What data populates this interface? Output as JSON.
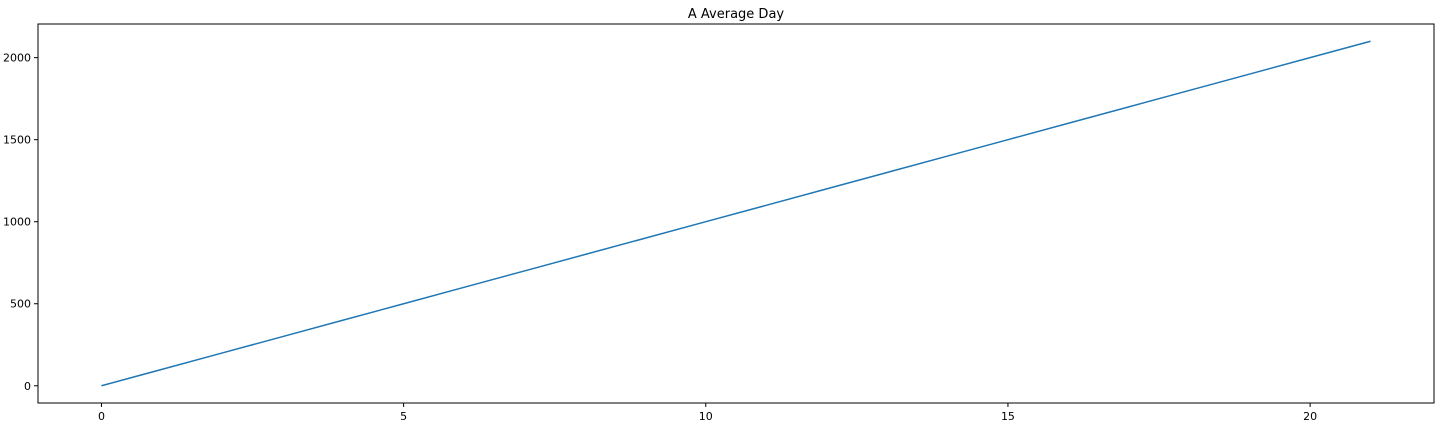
{
  "chart_data": {
    "type": "line",
    "title": "A Average Day",
    "xlabel": "",
    "ylabel": "",
    "x": [
      0,
      1,
      2,
      3,
      4,
      5,
      6,
      7,
      8,
      9,
      10,
      11,
      12,
      13,
      14,
      15,
      16,
      17,
      18,
      19,
      20,
      21
    ],
    "series": [
      {
        "values": [
          0,
          100,
          200,
          300,
          400,
          500,
          600,
          700,
          800,
          900,
          1000,
          1100,
          1200,
          1300,
          1400,
          1500,
          1600,
          1700,
          1800,
          1900,
          2000,
          2100
        ],
        "color": "#1f77b4"
      }
    ],
    "xlim": [
      -1.05,
      22.05
    ],
    "ylim": [
      -105,
      2205
    ],
    "xticks": [
      0,
      5,
      10,
      15,
      20
    ],
    "xtick_labels": [
      "0",
      "5",
      "10",
      "15",
      "20"
    ],
    "yticks": [
      0,
      500,
      1000,
      1500,
      2000
    ],
    "ytick_labels": [
      "0",
      "500",
      "1000",
      "1500",
      "2000"
    ],
    "grid": false,
    "legend": "none"
  }
}
